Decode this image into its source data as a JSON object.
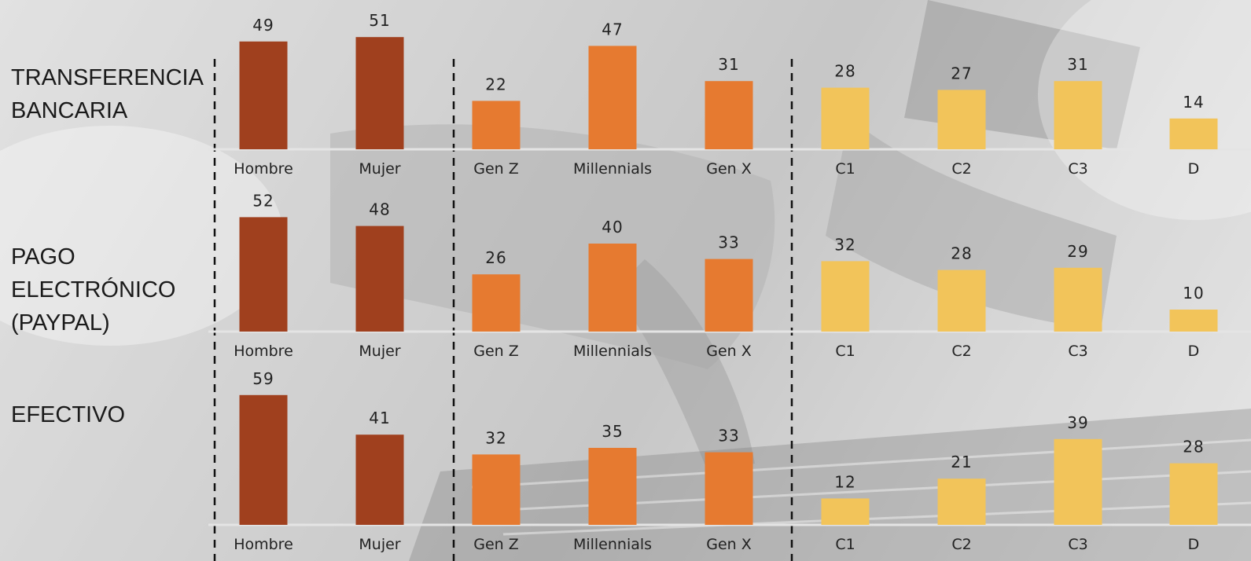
{
  "colors": {
    "gender": "#A0401E",
    "generation": "#E67A30",
    "segment": "#F2C45A",
    "baseline": "#e4e4e4",
    "divider": "#111111"
  },
  "chart_data": {
    "type": "bar",
    "groups": [
      {
        "name": "gender",
        "categories": [
          "Hombre",
          "Mujer"
        ]
      },
      {
        "name": "generation",
        "categories": [
          "Gen Z",
          "Millennials",
          "Gen X"
        ]
      },
      {
        "name": "segment",
        "categories": [
          "C1",
          "C2",
          "C3",
          "D"
        ]
      }
    ],
    "rows": [
      {
        "label": "TRANSFERENCIA\nBANCARIA",
        "values": {
          "gender": [
            49,
            51
          ],
          "generation": [
            22,
            47,
            31
          ],
          "segment": [
            28,
            27,
            31,
            14
          ]
        }
      },
      {
        "label": "PAGO\nELECTRÓNICO\n(PAYPAL)",
        "values": {
          "gender": [
            52,
            48
          ],
          "generation": [
            26,
            40,
            33
          ],
          "segment": [
            32,
            28,
            29,
            10
          ]
        }
      },
      {
        "label": "EFECTIVO",
        "values": {
          "gender": [
            59,
            41
          ],
          "generation": [
            32,
            35,
            33
          ],
          "segment": [
            12,
            21,
            39,
            28
          ]
        }
      }
    ]
  }
}
